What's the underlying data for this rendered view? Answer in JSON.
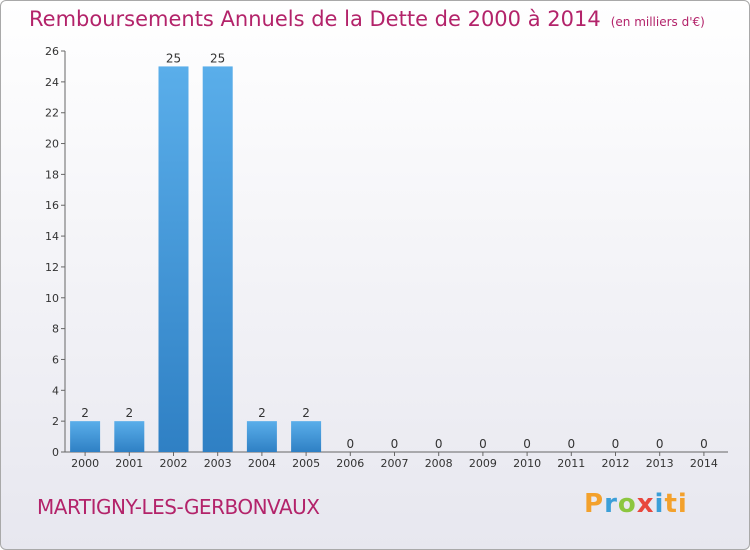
{
  "chart_data": {
    "type": "bar",
    "title": "Remboursements Annuels de la Dette de 2000 à 2014",
    "subtitle": "(en milliers d'€)",
    "categories": [
      "2000",
      "2001",
      "2002",
      "2003",
      "2004",
      "2005",
      "2006",
      "2007",
      "2008",
      "2009",
      "2010",
      "2011",
      "2012",
      "2013",
      "2014"
    ],
    "values": [
      2,
      2,
      25,
      25,
      2,
      2,
      0,
      0,
      0,
      0,
      0,
      0,
      0,
      0,
      0
    ],
    "value_labels": [
      "2",
      "2",
      "25",
      "25",
      "2",
      "2",
      "0",
      "0",
      "0",
      "0",
      "0",
      "0",
      "0",
      "0",
      "0"
    ],
    "yticks": [
      "0",
      "2",
      "4",
      "6",
      "8",
      "10",
      "12",
      "14",
      "16",
      "18",
      "20",
      "22",
      "24",
      "26"
    ],
    "ylim": [
      0,
      26
    ],
    "grid": false,
    "colors": {
      "bar_top": "#5aaeea",
      "bar_bottom": "#2f80c4",
      "title": "#b3236a"
    }
  },
  "location": "MARTIGNY-LES-GERBONVAUX",
  "logo": {
    "text": "Proxiti"
  }
}
